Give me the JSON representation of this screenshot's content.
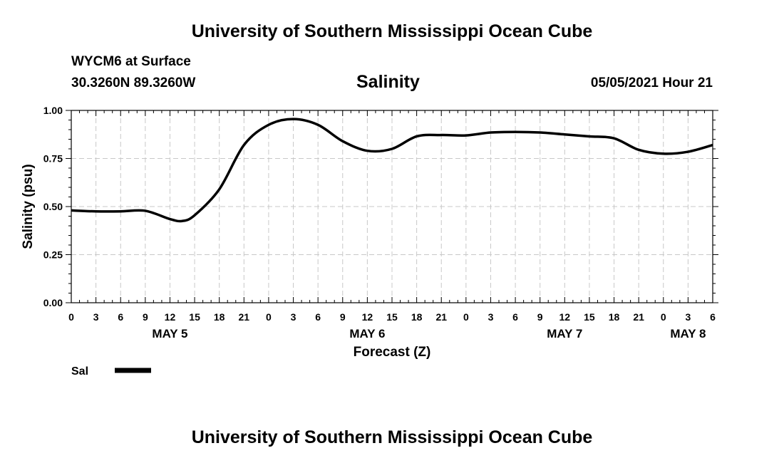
{
  "header": {
    "title_top": "University of Southern Mississippi Ocean Cube",
    "title_bottom": "University of Southern Mississippi Ocean Cube",
    "station": "WYCM6 at Surface",
    "coords": "30.3260N  89.3260W",
    "variable": "Salinity",
    "datetime": "05/05/2021 Hour 21"
  },
  "chart_data": {
    "type": "line",
    "title": "Salinity",
    "xlabel": "Forecast (Z)",
    "ylabel": "Salinity (psu)",
    "xlim": [
      0,
      78
    ],
    "ylim": [
      0,
      1
    ],
    "yticks": [
      "0.00",
      "0.25",
      "0.50",
      "0.75",
      "1.00"
    ],
    "xticks": [
      "0",
      "3",
      "6",
      "9",
      "12",
      "15",
      "18",
      "21",
      "0",
      "3",
      "6",
      "9",
      "12",
      "15",
      "18",
      "21",
      "0",
      "3",
      "6",
      "9",
      "12",
      "15",
      "18",
      "21",
      "0",
      "3",
      "6"
    ],
    "date_labels": [
      {
        "label": "MAY 5",
        "hour": 12
      },
      {
        "label": "MAY 6",
        "hour": 36
      },
      {
        "label": "MAY 7",
        "hour": 60
      },
      {
        "label": "MAY 8",
        "hour": 75
      }
    ],
    "grid": true,
    "legend": "bottom-left",
    "line_color": "#000000",
    "series": [
      {
        "name": "Sal",
        "x": [
          0,
          3,
          6,
          9,
          12,
          13.5,
          15,
          18,
          21,
          24,
          27,
          30,
          33,
          36,
          39,
          42,
          45,
          48,
          51,
          54,
          57,
          60,
          63,
          66,
          69,
          72,
          75,
          78
        ],
        "values": [
          0.48,
          0.475,
          0.475,
          0.478,
          0.435,
          0.425,
          0.455,
          0.59,
          0.82,
          0.925,
          0.955,
          0.925,
          0.84,
          0.79,
          0.8,
          0.865,
          0.872,
          0.87,
          0.885,
          0.888,
          0.885,
          0.875,
          0.865,
          0.855,
          0.795,
          0.775,
          0.785,
          0.82
        ]
      }
    ]
  }
}
